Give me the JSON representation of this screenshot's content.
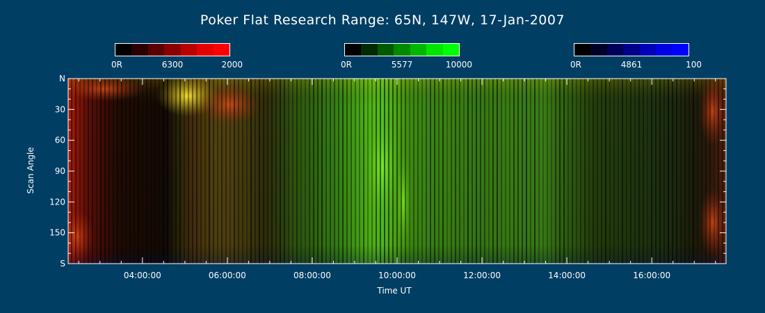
{
  "title": "Poker Flat Research Range: 65N, 147W, 17-Jan-2007",
  "colorbars": [
    {
      "name": "red",
      "colors": [
        "#000000",
        "#2a0000",
        "#5a0000",
        "#8a0000",
        "#b80000",
        "#e40000",
        "#ff0000"
      ],
      "labels": {
        "left": "0R",
        "middle": "6300",
        "right": "2000"
      }
    },
    {
      "name": "green",
      "colors": [
        "#000000",
        "#002a00",
        "#005a00",
        "#008a00",
        "#00b800",
        "#00e400",
        "#00ff00"
      ],
      "labels": {
        "left": "0R",
        "middle": "5577",
        "right": "10000"
      }
    },
    {
      "name": "blue",
      "colors": [
        "#000000",
        "#00002a",
        "#00005a",
        "#00008a",
        "#0000b8",
        "#0000e4",
        "#0000ff"
      ],
      "labels": {
        "left": "0R",
        "middle": "4861",
        "right": "100"
      }
    }
  ],
  "chart_data": {
    "type": "heatmap",
    "title": "Poker Flat Research Range: 65N, 147W, 17-Jan-2007",
    "xlabel": "Time UT",
    "ylabel": "Scan Angle",
    "x_ticks": [
      "04:00:00",
      "06:00:00",
      "08:00:00",
      "10:00:00",
      "12:00:00",
      "14:00:00",
      "16:00:00"
    ],
    "x_tick_hours": [
      4,
      6,
      8,
      10,
      12,
      14,
      16
    ],
    "xlim_hours": [
      2.25,
      17.75
    ],
    "y_ticks": [
      "N",
      "30",
      "60",
      "90",
      "120",
      "150",
      "S"
    ],
    "y_tick_values": [
      0,
      30,
      60,
      90,
      120,
      150,
      180
    ],
    "ylim": [
      0,
      180
    ],
    "channels": [
      "6300 red",
      "5577 green",
      "4861 blue"
    ],
    "colors": {
      "red": "#ff0000",
      "green": "#00ff00",
      "blue": "#0000ff",
      "background": "#013E63"
    }
  }
}
